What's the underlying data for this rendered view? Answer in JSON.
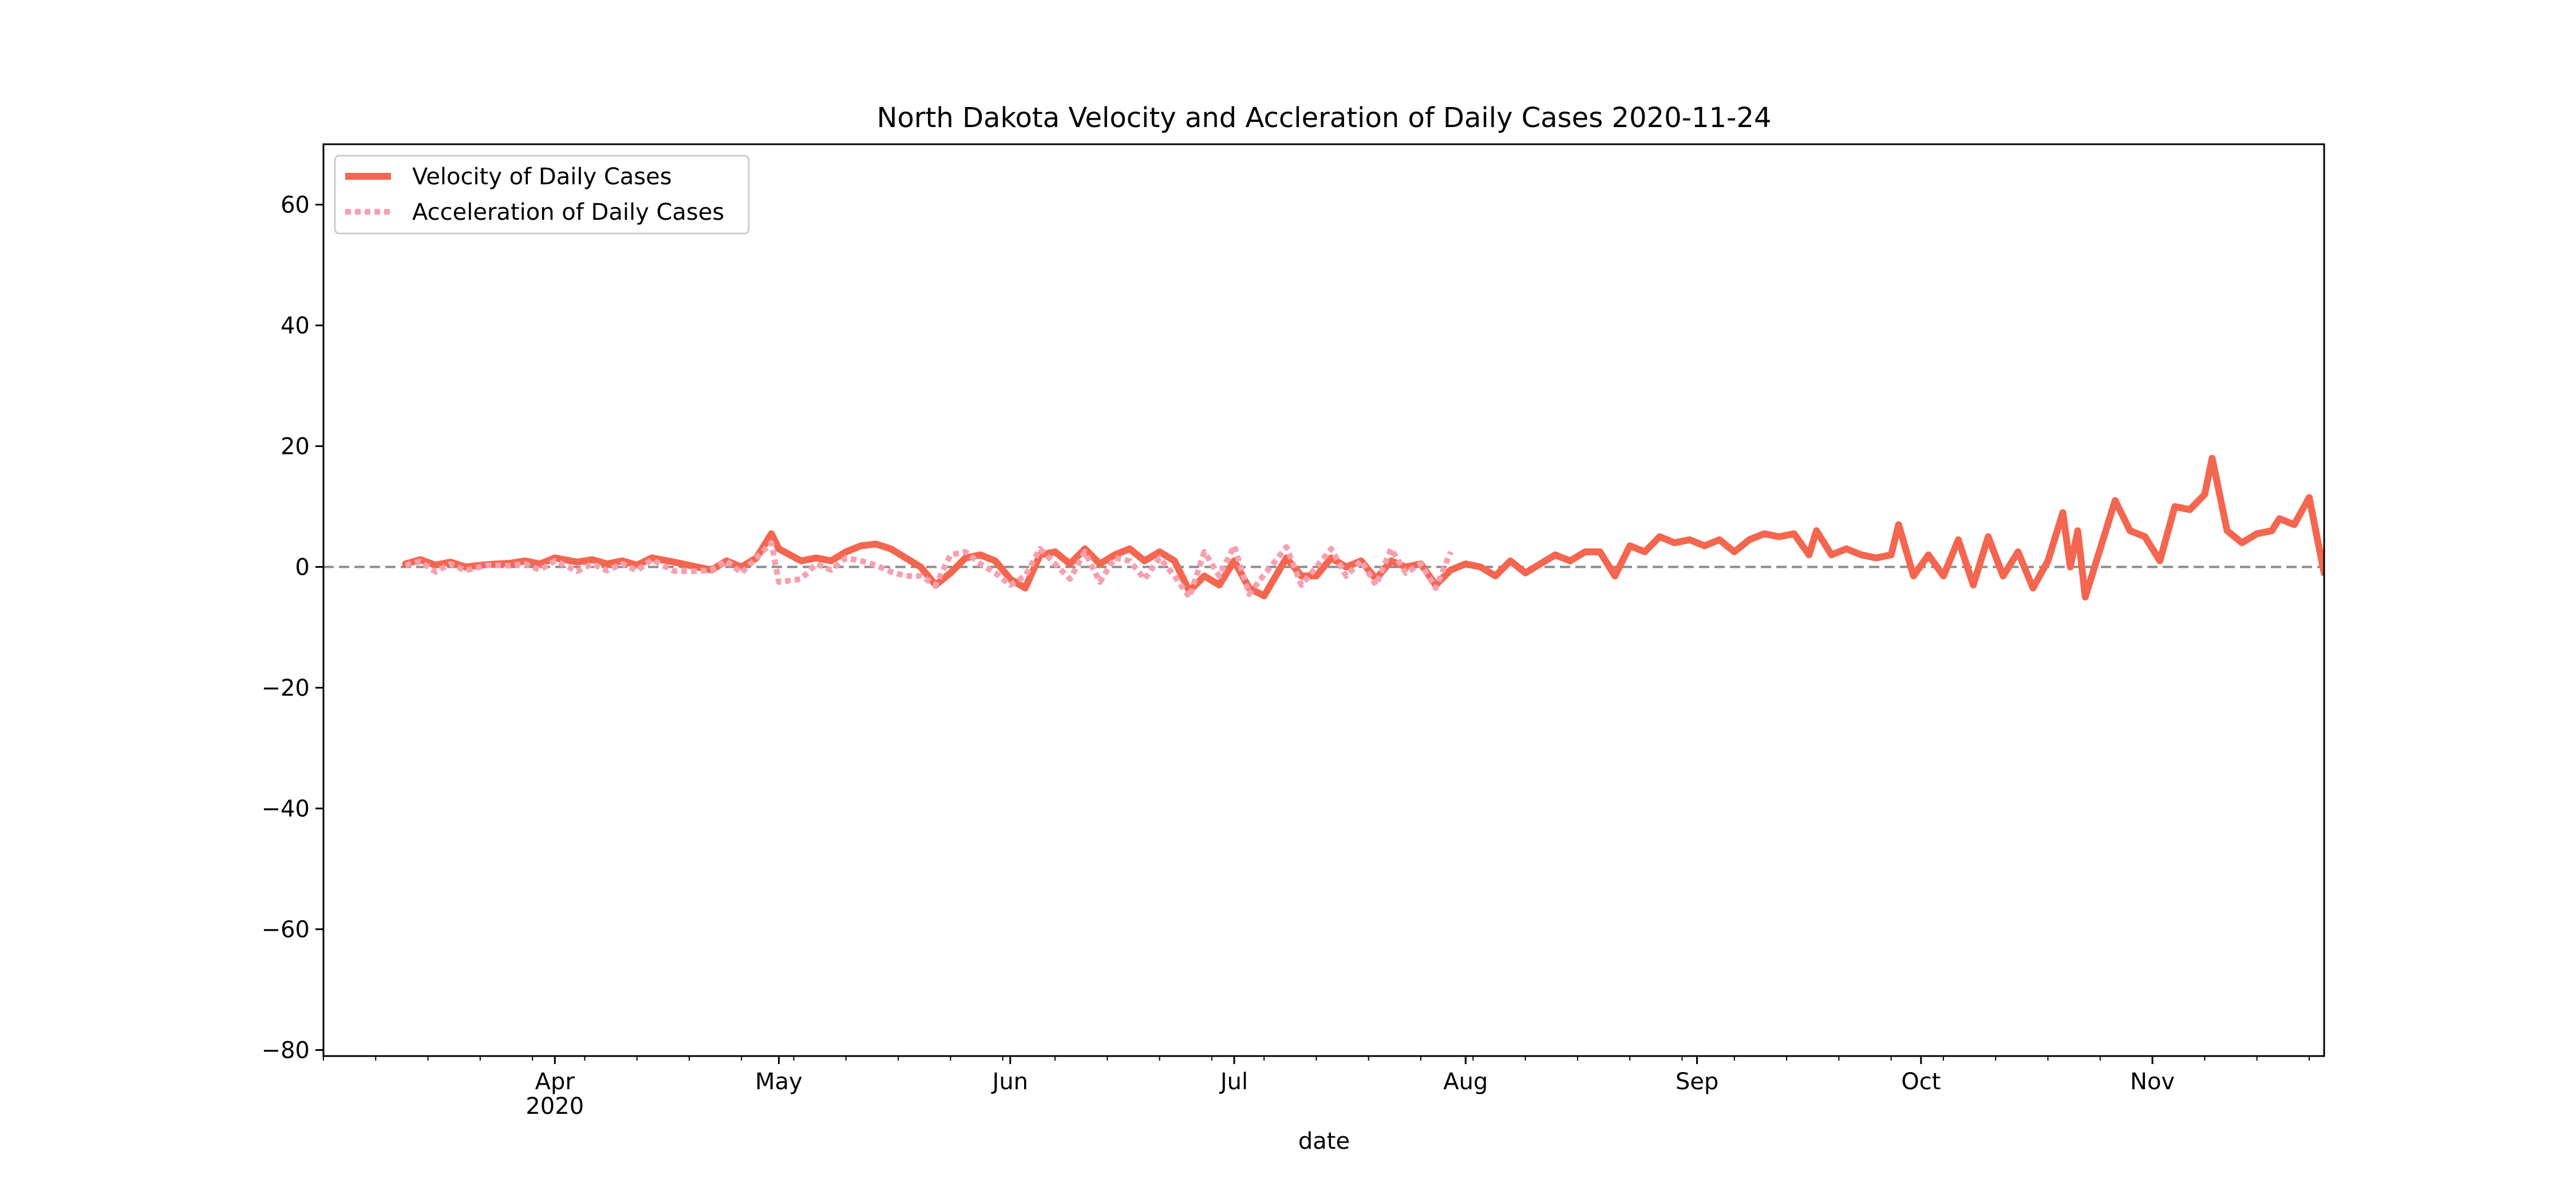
{
  "chart_data": {
    "type": "line",
    "title": "North Dakota Velocity and Accleration of Daily Cases 2020-11-24",
    "xlabel": "date",
    "ylabel": "",
    "xlim": [
      "2020-03-01",
      "2020-11-24"
    ],
    "ylim": [
      -81,
      70
    ],
    "yticks": [
      -80,
      -60,
      -40,
      -20,
      0,
      20,
      40,
      60
    ],
    "xticks": [
      {
        "date": "2020-04-01",
        "label": "Apr",
        "sublabel": "2020"
      },
      {
        "date": "2020-05-01",
        "label": "May",
        "sublabel": ""
      },
      {
        "date": "2020-06-01",
        "label": "Jun",
        "sublabel": ""
      },
      {
        "date": "2020-07-01",
        "label": "Jul",
        "sublabel": ""
      },
      {
        "date": "2020-08-01",
        "label": "Aug",
        "sublabel": ""
      },
      {
        "date": "2020-09-01",
        "label": "Sep",
        "sublabel": ""
      },
      {
        "date": "2020-10-01",
        "label": "Oct",
        "sublabel": ""
      },
      {
        "date": "2020-11-01",
        "label": "Nov",
        "sublabel": ""
      }
    ],
    "reference_line": 0,
    "grid": false,
    "legend_position": "top-left",
    "colors": {
      "velocity": "#f4664f",
      "acceleration": "#f7a0b0",
      "reference": "#8c8c8c"
    },
    "series": [
      {
        "name": "Velocity of Daily Cases",
        "style": "solid",
        "points": [
          [
            "2020-03-12",
            0.5
          ],
          [
            "2020-03-14",
            1.2
          ],
          [
            "2020-03-16",
            0.3
          ],
          [
            "2020-03-18",
            0.8
          ],
          [
            "2020-03-20",
            0.0
          ],
          [
            "2020-03-23",
            0.4
          ],
          [
            "2020-03-26",
            0.6
          ],
          [
            "2020-03-28",
            1.0
          ],
          [
            "2020-03-30",
            0.5
          ],
          [
            "2020-04-01",
            1.5
          ],
          [
            "2020-04-04",
            0.8
          ],
          [
            "2020-04-06",
            1.2
          ],
          [
            "2020-04-08",
            0.5
          ],
          [
            "2020-04-10",
            1.0
          ],
          [
            "2020-04-12",
            0.3
          ],
          [
            "2020-04-14",
            1.5
          ],
          [
            "2020-04-17",
            0.8
          ],
          [
            "2020-04-20",
            0.0
          ],
          [
            "2020-04-22",
            -0.5
          ],
          [
            "2020-04-24",
            1.0
          ],
          [
            "2020-04-26",
            0.0
          ],
          [
            "2020-04-28",
            1.5
          ],
          [
            "2020-04-30",
            5.5
          ],
          [
            "2020-05-01",
            3.0
          ],
          [
            "2020-05-04",
            1.0
          ],
          [
            "2020-05-06",
            1.5
          ],
          [
            "2020-05-08",
            1.0
          ],
          [
            "2020-05-10",
            2.5
          ],
          [
            "2020-05-12",
            3.5
          ],
          [
            "2020-05-14",
            3.8
          ],
          [
            "2020-05-16",
            3.0
          ],
          [
            "2020-05-18",
            1.5
          ],
          [
            "2020-05-20",
            0.0
          ],
          [
            "2020-05-22",
            -3.0
          ],
          [
            "2020-05-24",
            -1.0
          ],
          [
            "2020-05-26",
            1.5
          ],
          [
            "2020-05-28",
            2.0
          ],
          [
            "2020-05-30",
            1.0
          ],
          [
            "2020-06-01",
            -2.0
          ],
          [
            "2020-06-03",
            -3.5
          ],
          [
            "2020-06-05",
            2.0
          ],
          [
            "2020-06-07",
            2.5
          ],
          [
            "2020-06-09",
            0.5
          ],
          [
            "2020-06-11",
            3.0
          ],
          [
            "2020-06-13",
            0.5
          ],
          [
            "2020-06-15",
            2.0
          ],
          [
            "2020-06-17",
            3.0
          ],
          [
            "2020-06-19",
            1.0
          ],
          [
            "2020-06-21",
            2.5
          ],
          [
            "2020-06-23",
            1.0
          ],
          [
            "2020-06-25",
            -4.0
          ],
          [
            "2020-06-27",
            -1.5
          ],
          [
            "2020-06-29",
            -3.0
          ],
          [
            "2020-07-01",
            1.0
          ],
          [
            "2020-07-03",
            -3.5
          ],
          [
            "2020-07-05",
            -4.8
          ],
          [
            "2020-07-08",
            1.5
          ],
          [
            "2020-07-10",
            -1.5
          ],
          [
            "2020-07-12",
            -1.5
          ],
          [
            "2020-07-14",
            1.5
          ],
          [
            "2020-07-16",
            0.0
          ],
          [
            "2020-07-18",
            1.0
          ],
          [
            "2020-07-20",
            -2.0
          ],
          [
            "2020-07-22",
            1.0
          ],
          [
            "2020-07-24",
            0.0
          ],
          [
            "2020-07-26",
            0.5
          ],
          [
            "2020-07-28",
            -3.0
          ],
          [
            "2020-07-30",
            -0.5
          ],
          [
            "2020-08-01",
            0.5
          ],
          [
            "2020-08-03",
            0.0
          ],
          [
            "2020-08-05",
            -1.5
          ],
          [
            "2020-08-07",
            1.0
          ],
          [
            "2020-08-09",
            -1.0
          ],
          [
            "2020-08-11",
            0.5
          ],
          [
            "2020-08-13",
            2.0
          ],
          [
            "2020-08-15",
            1.0
          ],
          [
            "2020-08-17",
            2.5
          ],
          [
            "2020-08-19",
            2.5
          ],
          [
            "2020-08-21",
            -1.5
          ],
          [
            "2020-08-23",
            3.5
          ],
          [
            "2020-08-25",
            2.5
          ],
          [
            "2020-08-27",
            5.0
          ],
          [
            "2020-08-29",
            4.0
          ],
          [
            "2020-08-31",
            4.5
          ],
          [
            "2020-09-02",
            3.5
          ],
          [
            "2020-09-04",
            4.5
          ],
          [
            "2020-09-06",
            2.5
          ],
          [
            "2020-09-08",
            4.5
          ],
          [
            "2020-09-10",
            5.5
          ],
          [
            "2020-09-12",
            5.0
          ],
          [
            "2020-09-14",
            5.5
          ],
          [
            "2020-09-16",
            2.0
          ],
          [
            "2020-09-17",
            6.0
          ],
          [
            "2020-09-19",
            2.0
          ],
          [
            "2020-09-21",
            3.0
          ],
          [
            "2020-09-23",
            2.0
          ],
          [
            "2020-09-25",
            1.5
          ],
          [
            "2020-09-27",
            2.0
          ],
          [
            "2020-09-28",
            7.0
          ],
          [
            "2020-09-30",
            -1.5
          ],
          [
            "2020-10-02",
            2.0
          ],
          [
            "2020-10-04",
            -1.5
          ],
          [
            "2020-10-06",
            4.5
          ],
          [
            "2020-10-08",
            -3.0
          ],
          [
            "2020-10-10",
            5.0
          ],
          [
            "2020-10-12",
            -1.5
          ],
          [
            "2020-10-14",
            2.5
          ],
          [
            "2020-10-16",
            -3.5
          ],
          [
            "2020-10-18",
            1.0
          ],
          [
            "2020-10-20",
            9.0
          ],
          [
            "2020-10-21",
            0.0
          ],
          [
            "2020-10-22",
            6.0
          ],
          [
            "2020-10-23",
            -5.0
          ],
          [
            "2020-10-25",
            3.0
          ],
          [
            "2020-10-27",
            11.0
          ],
          [
            "2020-10-29",
            6.0
          ],
          [
            "2020-10-31",
            5.0
          ],
          [
            "2020-11-02",
            1.0
          ],
          [
            "2020-11-04",
            10.0
          ],
          [
            "2020-11-06",
            9.5
          ],
          [
            "2020-11-08",
            12.0
          ],
          [
            "2020-11-09",
            18.0
          ],
          [
            "2020-11-11",
            6.0
          ],
          [
            "2020-11-13",
            4.0
          ],
          [
            "2020-11-15",
            5.5
          ],
          [
            "2020-11-17",
            6.0
          ],
          [
            "2020-11-18",
            8.0
          ],
          [
            "2020-11-20",
            7.0
          ],
          [
            "2020-11-22",
            11.5
          ],
          [
            "2020-11-24",
            -1.0
          ]
        ]
      },
      {
        "name": "Acceleration of Daily Cases",
        "style": "dotted",
        "points": [
          [
            "2020-03-12",
            0.3
          ],
          [
            "2020-03-14",
            0.9
          ],
          [
            "2020-03-16",
            -0.8
          ],
          [
            "2020-03-18",
            0.5
          ],
          [
            "2020-03-20",
            -0.6
          ],
          [
            "2020-03-23",
            0.3
          ],
          [
            "2020-03-26",
            0.2
          ],
          [
            "2020-03-28",
            0.5
          ],
          [
            "2020-03-30",
            -0.5
          ],
          [
            "2020-04-01",
            1.0
          ],
          [
            "2020-04-04",
            -0.7
          ],
          [
            "2020-04-06",
            0.5
          ],
          [
            "2020-04-08",
            -0.6
          ],
          [
            "2020-04-10",
            0.5
          ],
          [
            "2020-04-12",
            -0.6
          ],
          [
            "2020-04-14",
            1.2
          ],
          [
            "2020-04-17",
            -0.7
          ],
          [
            "2020-04-20",
            -0.7
          ],
          [
            "2020-04-22",
            -0.5
          ],
          [
            "2020-04-24",
            1.0
          ],
          [
            "2020-04-26",
            -1.0
          ],
          [
            "2020-04-28",
            1.5
          ],
          [
            "2020-04-30",
            4.0
          ],
          [
            "2020-05-01",
            -2.5
          ],
          [
            "2020-05-04",
            -2.0
          ],
          [
            "2020-05-06",
            0.5
          ],
          [
            "2020-05-08",
            -0.5
          ],
          [
            "2020-05-10",
            1.5
          ],
          [
            "2020-05-12",
            1.0
          ],
          [
            "2020-05-14",
            0.3
          ],
          [
            "2020-05-16",
            -0.8
          ],
          [
            "2020-05-18",
            -1.5
          ],
          [
            "2020-05-20",
            -1.5
          ],
          [
            "2020-05-22",
            -3.0
          ],
          [
            "2020-05-24",
            2.0
          ],
          [
            "2020-05-26",
            2.5
          ],
          [
            "2020-05-28",
            0.5
          ],
          [
            "2020-05-30",
            -1.0
          ],
          [
            "2020-06-01",
            -3.0
          ],
          [
            "2020-06-03",
            -1.5
          ],
          [
            "2020-06-05",
            3.0
          ],
          [
            "2020-06-07",
            0.5
          ],
          [
            "2020-06-09",
            -2.0
          ],
          [
            "2020-06-11",
            2.5
          ],
          [
            "2020-06-13",
            -2.5
          ],
          [
            "2020-06-15",
            1.5
          ],
          [
            "2020-06-17",
            1.0
          ],
          [
            "2020-06-19",
            -2.0
          ],
          [
            "2020-06-21",
            1.5
          ],
          [
            "2020-06-23",
            -1.5
          ],
          [
            "2020-06-25",
            -5.0
          ],
          [
            "2020-06-27",
            2.5
          ],
          [
            "2020-06-29",
            -1.5
          ],
          [
            "2020-07-01",
            3.5
          ],
          [
            "2020-07-03",
            -4.5
          ],
          [
            "2020-07-05",
            -1.3
          ],
          [
            "2020-07-08",
            3.3
          ],
          [
            "2020-07-10",
            -3.0
          ],
          [
            "2020-07-12",
            0.0
          ],
          [
            "2020-07-14",
            3.0
          ],
          [
            "2020-07-16",
            -1.5
          ],
          [
            "2020-07-18",
            1.0
          ],
          [
            "2020-07-20",
            -3.0
          ],
          [
            "2020-07-22",
            3.0
          ],
          [
            "2020-07-24",
            -1.0
          ],
          [
            "2020-07-26",
            0.5
          ],
          [
            "2020-07-28",
            -3.5
          ],
          [
            "2020-07-30",
            2.5
          ]
        ]
      }
    ]
  }
}
